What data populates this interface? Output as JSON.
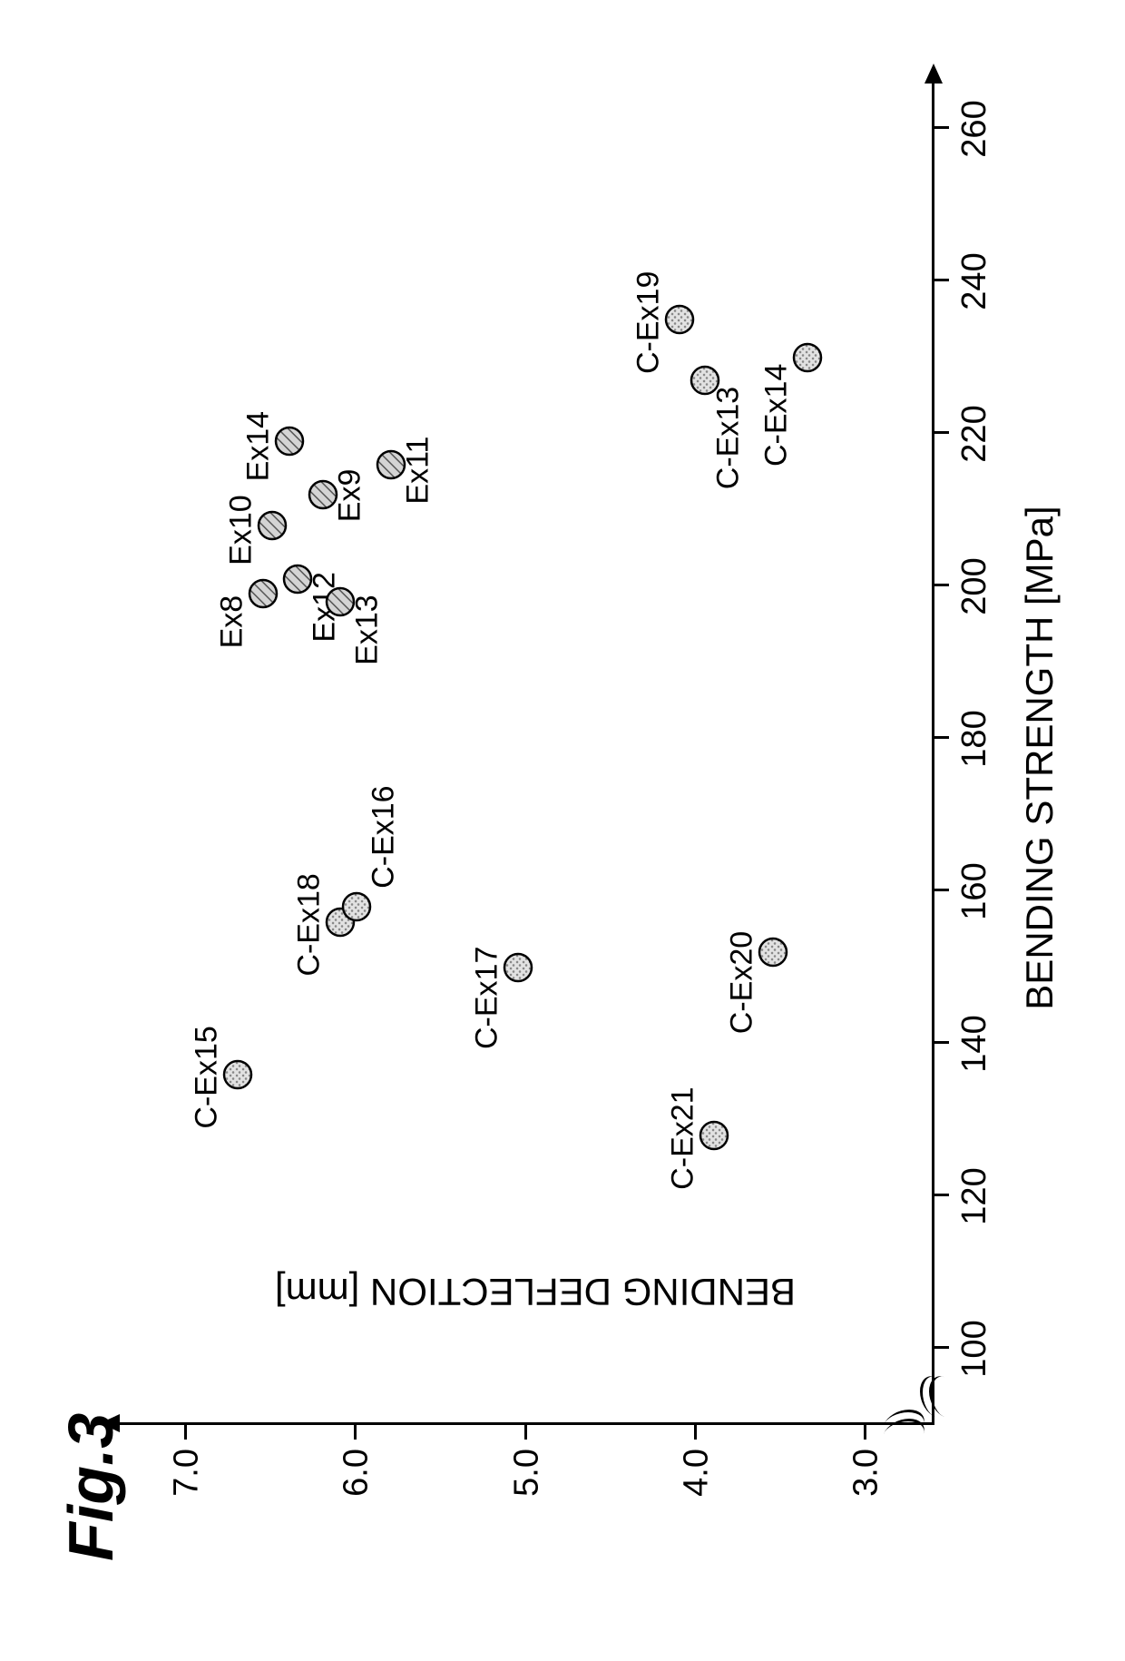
{
  "figure": {
    "title": "Fig.3",
    "title_fontsize": 70,
    "background_color": "#ffffff"
  },
  "chart": {
    "type": "scatter",
    "xlabel": "BENDING STRENGTH [MPa]",
    "ylabel": "BENDING DEFLECTION [mm]",
    "label_fontsize": 42,
    "tick_fontsize": 38,
    "xlim": [
      90,
      265
    ],
    "ylim": [
      2.6,
      7.3
    ],
    "xticks": [
      100,
      120,
      140,
      160,
      180,
      200,
      220,
      240,
      260
    ],
    "yticks": [
      3.0,
      4.0,
      5.0,
      6.0,
      7.0
    ],
    "axis_break_x": 94,
    "axis_break_y": 2.75,
    "axis_color": "#000000",
    "marker_size": 34,
    "marker_border_color": "#000000",
    "series": {
      "examples": {
        "fill": "hatched",
        "fill_color": "#bdbdbd",
        "hatch_color": "#555555",
        "points": [
          {
            "label": "Ex8",
            "x": 199,
            "y": 6.55,
            "label_dx": -60,
            "label_dy": 34
          },
          {
            "label": "Ex10",
            "x": 208,
            "y": 6.5,
            "label_dx": -44,
            "label_dy": 34
          },
          {
            "label": "Ex14",
            "x": 219,
            "y": 6.4,
            "label_dx": -44,
            "label_dy": 34
          },
          {
            "label": "Ex12",
            "x": 201,
            "y": 6.35,
            "label_dx": -70,
            "label_dy": -30
          },
          {
            "label": "Ex9",
            "x": 212,
            "y": 6.2,
            "label_dx": -30,
            "label_dy": -30
          },
          {
            "label": "Ex13",
            "x": 198,
            "y": 6.1,
            "label_dx": -70,
            "label_dy": -30
          },
          {
            "label": "Ex11",
            "x": 216,
            "y": 5.8,
            "label_dx": -44,
            "label_dy": -30
          }
        ]
      },
      "comparatives": {
        "fill": "dotted",
        "fill_color": "#d9d9d9",
        "dot_color": "#888888",
        "points": [
          {
            "label": "C-Ex15",
            "x": 136,
            "y": 6.7,
            "label_dx": -60,
            "label_dy": 34
          },
          {
            "label": "C-Ex18",
            "x": 156,
            "y": 6.1,
            "label_dx": -60,
            "label_dy": 34
          },
          {
            "label": "C-Ex16",
            "x": 158,
            "y": 6.0,
            "label_dx": 20,
            "label_dy": -30
          },
          {
            "label": "C-Ex17",
            "x": 150,
            "y": 5.05,
            "label_dx": -90,
            "label_dy": 34
          },
          {
            "label": "C-Ex19",
            "x": 235,
            "y": 4.1,
            "label_dx": -60,
            "label_dy": 34
          },
          {
            "label": "C-Ex13",
            "x": 227,
            "y": 3.95,
            "label_dx": -120,
            "label_dy": -26
          },
          {
            "label": "C-Ex21",
            "x": 128,
            "y": 3.9,
            "label_dx": -60,
            "label_dy": 34
          },
          {
            "label": "C-Ex20",
            "x": 152,
            "y": 3.55,
            "label_dx": -90,
            "label_dy": 34
          },
          {
            "label": "C-Ex14",
            "x": 230,
            "y": 3.35,
            "label_dx": -120,
            "label_dy": 34
          }
        ]
      }
    }
  }
}
